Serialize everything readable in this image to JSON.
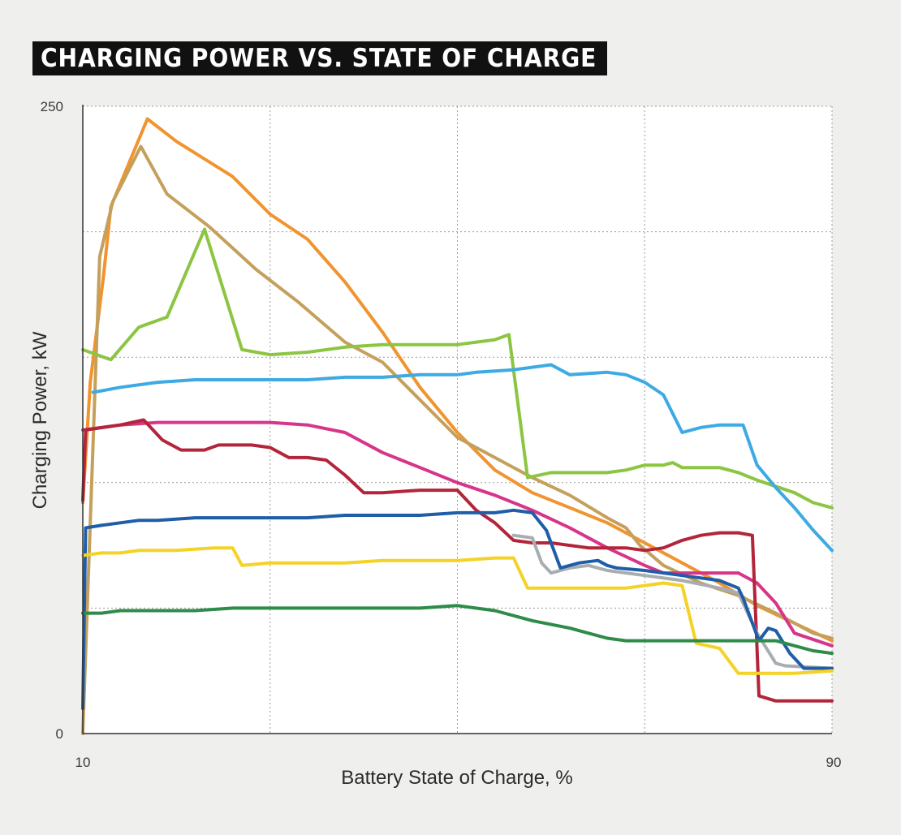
{
  "chart_data": {
    "type": "line",
    "title": "CHARGING POWER VS. STATE OF CHARGE",
    "xlabel": "Battery State of Charge, %",
    "ylabel": "Charging Power, kW",
    "xlim": [
      10,
      90
    ],
    "ylim": [
      0,
      250
    ],
    "x_tick_labels": [
      {
        "value": 10,
        "label": "10"
      },
      {
        "value": 90,
        "label": "90"
      }
    ],
    "y_tick_labels": [
      {
        "value": 0,
        "label": "0"
      },
      {
        "value": 250,
        "label": "250"
      }
    ],
    "x_grid": [
      30,
      50,
      70
    ],
    "y_grid": [
      50,
      100,
      150,
      200
    ],
    "grid": true,
    "series": [
      {
        "color": "#f0942f",
        "points": [
          [
            10,
            92
          ],
          [
            10.8,
            140
          ],
          [
            12.2,
            182
          ],
          [
            13,
            210
          ],
          [
            16.9,
            245
          ],
          [
            20,
            236
          ],
          [
            26,
            222
          ],
          [
            30,
            207
          ],
          [
            34,
            197
          ],
          [
            38,
            180
          ],
          [
            42,
            160
          ],
          [
            46,
            138
          ],
          [
            50,
            120
          ],
          [
            54,
            105
          ],
          [
            58,
            96
          ],
          [
            62,
            90
          ],
          [
            66,
            84
          ],
          [
            70,
            76
          ],
          [
            74,
            68
          ],
          [
            78,
            60
          ],
          [
            82,
            51
          ],
          [
            86,
            44
          ],
          [
            90,
            37
          ]
        ]
      },
      {
        "color": "#c4a05c",
        "points": [
          [
            10,
            0
          ],
          [
            11.8,
            190
          ],
          [
            13.2,
            212
          ],
          [
            16.2,
            234
          ],
          [
            19,
            215
          ],
          [
            23.5,
            202
          ],
          [
            28.5,
            185
          ],
          [
            33,
            172
          ],
          [
            38,
            156
          ],
          [
            42,
            148
          ],
          [
            46,
            133
          ],
          [
            50,
            118
          ],
          [
            54,
            110
          ],
          [
            58,
            102
          ],
          [
            62,
            95
          ],
          [
            66,
            86
          ],
          [
            68,
            82
          ],
          [
            69.5,
            75
          ],
          [
            72,
            67
          ],
          [
            76,
            60
          ],
          [
            80,
            55
          ],
          [
            84,
            48
          ],
          [
            88,
            40
          ],
          [
            90,
            38
          ]
        ]
      },
      {
        "color": "#8cc542",
        "points": [
          [
            10,
            153
          ],
          [
            13,
            149
          ],
          [
            16,
            162
          ],
          [
            19,
            166
          ],
          [
            23,
            201
          ],
          [
            27,
            153
          ],
          [
            30,
            151
          ],
          [
            34,
            152
          ],
          [
            38,
            154
          ],
          [
            42,
            155
          ],
          [
            46,
            155
          ],
          [
            50,
            155
          ],
          [
            54,
            157
          ],
          [
            55.5,
            159
          ],
          [
            57.5,
            102
          ],
          [
            60,
            104
          ],
          [
            66,
            104
          ],
          [
            68,
            105
          ],
          [
            70,
            107
          ],
          [
            72,
            107
          ],
          [
            73,
            108
          ],
          [
            74,
            106
          ],
          [
            78,
            106
          ],
          [
            80,
            104
          ],
          [
            82,
            101
          ],
          [
            86,
            96
          ],
          [
            88,
            92
          ],
          [
            90,
            90
          ]
        ]
      },
      {
        "color": "#3daae3",
        "points": [
          [
            11.1,
            136
          ],
          [
            14,
            138
          ],
          [
            18,
            140
          ],
          [
            22,
            141
          ],
          [
            26,
            141
          ],
          [
            30,
            141
          ],
          [
            34,
            141
          ],
          [
            38,
            142
          ],
          [
            42,
            142
          ],
          [
            46,
            143
          ],
          [
            50,
            143
          ],
          [
            52,
            144
          ],
          [
            56,
            145
          ],
          [
            60,
            147
          ],
          [
            62,
            143
          ],
          [
            66,
            144
          ],
          [
            68,
            143
          ],
          [
            70,
            140
          ],
          [
            72,
            135
          ],
          [
            74,
            120
          ],
          [
            76,
            122
          ],
          [
            78,
            123
          ],
          [
            80,
            123
          ],
          [
            80.5,
            123
          ],
          [
            82,
            107
          ],
          [
            84,
            98
          ],
          [
            86,
            90
          ],
          [
            88,
            81
          ],
          [
            90,
            73
          ]
        ]
      },
      {
        "color": "#d7358b",
        "points": [
          [
            10,
            121
          ],
          [
            14,
            123
          ],
          [
            18,
            124
          ],
          [
            22,
            124
          ],
          [
            26,
            124
          ],
          [
            30,
            124
          ],
          [
            34,
            123
          ],
          [
            38,
            120
          ],
          [
            42,
            112
          ],
          [
            46,
            106
          ],
          [
            50,
            100
          ],
          [
            54,
            95
          ],
          [
            58,
            89
          ],
          [
            62,
            82
          ],
          [
            66,
            74
          ],
          [
            70,
            67
          ],
          [
            72,
            64
          ],
          [
            76,
            64
          ],
          [
            80,
            64
          ],
          [
            82,
            60
          ],
          [
            84,
            52
          ],
          [
            86,
            40
          ],
          [
            90,
            35
          ]
        ]
      },
      {
        "color": "#b2253a",
        "points": [
          [
            10,
            93
          ],
          [
            10.3,
            121
          ],
          [
            14,
            123
          ],
          [
            16.5,
            125
          ],
          [
            18.5,
            117
          ],
          [
            20.5,
            113
          ],
          [
            23,
            113
          ],
          [
            24.5,
            115
          ],
          [
            28,
            115
          ],
          [
            30,
            114
          ],
          [
            32,
            110
          ],
          [
            34,
            110
          ],
          [
            36,
            109
          ],
          [
            38,
            103
          ],
          [
            40,
            96
          ],
          [
            42,
            96
          ],
          [
            46,
            97
          ],
          [
            50,
            97
          ],
          [
            52,
            89
          ],
          [
            54,
            84
          ],
          [
            56,
            77
          ],
          [
            58,
            76
          ],
          [
            60,
            76
          ],
          [
            64,
            74
          ],
          [
            68,
            74
          ],
          [
            70,
            73
          ],
          [
            72,
            74
          ],
          [
            74,
            77
          ],
          [
            76,
            79
          ],
          [
            78,
            80
          ],
          [
            80,
            80
          ],
          [
            81.5,
            79
          ],
          [
            82.2,
            15
          ],
          [
            84,
            13
          ],
          [
            86,
            13
          ],
          [
            88,
            13
          ],
          [
            90,
            13
          ]
        ]
      },
      {
        "color": "#a8adb3",
        "points": [
          [
            56,
            79
          ],
          [
            58,
            78
          ],
          [
            59,
            68
          ],
          [
            60,
            64
          ],
          [
            62,
            66
          ],
          [
            64,
            67
          ],
          [
            66,
            65
          ],
          [
            70,
            63
          ],
          [
            74,
            61
          ],
          [
            78,
            58
          ],
          [
            80,
            56
          ],
          [
            82,
            40
          ],
          [
            84,
            28
          ],
          [
            85,
            27
          ],
          [
            90,
            26
          ]
        ]
      },
      {
        "color": "#1f5ea7",
        "points": [
          [
            10,
            10
          ],
          [
            10.3,
            82
          ],
          [
            12,
            83
          ],
          [
            14,
            84
          ],
          [
            16,
            85
          ],
          [
            18,
            85
          ],
          [
            22,
            86
          ],
          [
            26,
            86
          ],
          [
            30,
            86
          ],
          [
            34,
            86
          ],
          [
            38,
            87
          ],
          [
            42,
            87
          ],
          [
            46,
            87
          ],
          [
            50,
            88
          ],
          [
            54,
            88
          ],
          [
            56,
            89
          ],
          [
            58,
            88
          ],
          [
            59.5,
            81
          ],
          [
            61,
            66
          ],
          [
            63,
            68
          ],
          [
            65,
            69
          ],
          [
            66,
            67
          ],
          [
            67,
            66
          ],
          [
            70,
            65
          ],
          [
            74,
            63
          ],
          [
            78,
            61
          ],
          [
            80,
            58
          ],
          [
            80.5,
            54
          ],
          [
            82.2,
            37
          ],
          [
            83.2,
            42
          ],
          [
            84,
            41
          ],
          [
            85.5,
            32
          ],
          [
            87,
            26
          ],
          [
            90,
            26
          ]
        ]
      },
      {
        "color": "#f5d226",
        "points": [
          [
            10,
            71
          ],
          [
            12,
            72
          ],
          [
            14,
            72
          ],
          [
            16,
            73
          ],
          [
            20,
            73
          ],
          [
            24,
            74
          ],
          [
            26,
            74
          ],
          [
            27,
            67
          ],
          [
            30,
            68
          ],
          [
            34,
            68
          ],
          [
            38,
            68
          ],
          [
            42,
            69
          ],
          [
            46,
            69
          ],
          [
            50,
            69
          ],
          [
            54,
            70
          ],
          [
            56,
            70
          ],
          [
            57.5,
            58
          ],
          [
            60,
            58
          ],
          [
            64,
            58
          ],
          [
            68,
            58
          ],
          [
            70,
            59
          ],
          [
            72,
            60
          ],
          [
            74,
            59
          ],
          [
            75.5,
            36
          ],
          [
            78,
            34
          ],
          [
            80,
            24
          ],
          [
            82,
            24
          ],
          [
            86,
            24
          ],
          [
            90,
            25
          ]
        ]
      },
      {
        "color": "#2e8b49",
        "points": [
          [
            10,
            48
          ],
          [
            12,
            48
          ],
          [
            14,
            49
          ],
          [
            18,
            49
          ],
          [
            22,
            49
          ],
          [
            26,
            50
          ],
          [
            30,
            50
          ],
          [
            34,
            50
          ],
          [
            38,
            50
          ],
          [
            42,
            50
          ],
          [
            46,
            50
          ],
          [
            50,
            51
          ],
          [
            54,
            49
          ],
          [
            58,
            45
          ],
          [
            62,
            42
          ],
          [
            64,
            40
          ],
          [
            66,
            38
          ],
          [
            68,
            37
          ],
          [
            70,
            37
          ],
          [
            74,
            37
          ],
          [
            78,
            37
          ],
          [
            82,
            37
          ],
          [
            84,
            37
          ],
          [
            86,
            35
          ],
          [
            88,
            33
          ],
          [
            90,
            32
          ]
        ]
      }
    ]
  }
}
